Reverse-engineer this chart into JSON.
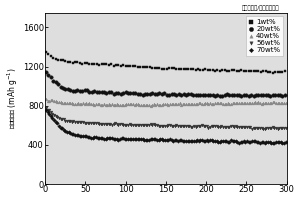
{
  "ylabel": "放电比容量 (mAh g⁻¹)",
  "xlim": [
    0,
    300
  ],
  "ylim": [
    0,
    1750
  ],
  "yticks": [
    0,
    400,
    800,
    1200,
    1600
  ],
  "xticks": [
    0,
    50,
    100,
    150,
    200,
    250,
    300
  ],
  "bg_color": "#e8e8e8",
  "series": [
    {
      "label": "1wt%",
      "marker": "s",
      "color": "#111111",
      "y_data": [
        1350,
        1280,
        1260,
        1250,
        1240,
        1230,
        1225,
        1220,
        1215,
        1210,
        1205,
        1200,
        1195,
        1190,
        1185,
        1180,
        1175,
        1175,
        1170,
        1168,
        1165,
        1162,
        1160,
        1158,
        1155,
        1153,
        1150,
        1148,
        1145,
        1143
      ],
      "markersize": 2.0,
      "markevery": 3
    },
    {
      "label": "20wt%",
      "marker": "o",
      "color": "#111111",
      "y_data": [
        1140,
        1050,
        980,
        960,
        955,
        950,
        945,
        940,
        935,
        930,
        928,
        926,
        924,
        922,
        920,
        918,
        916,
        914,
        912,
        910,
        908,
        910,
        912,
        910,
        908,
        906,
        905,
        904,
        903,
        902
      ],
      "markersize": 2.5,
      "markevery": 3
    },
    {
      "label": "40wt%",
      "marker": "^",
      "color": "#888888",
      "y_data": [
        870,
        840,
        830,
        825,
        822,
        820,
        818,
        816,
        815,
        814,
        813,
        812,
        811,
        812,
        813,
        815,
        817,
        818,
        820,
        822,
        823,
        824,
        825,
        826,
        827,
        828,
        829,
        830,
        830,
        830
      ],
      "markersize": 2.0,
      "markevery": 2
    },
    {
      "label": "56wt%",
      "marker": "v",
      "color": "#333333",
      "y_data": [
        780,
        700,
        660,
        640,
        630,
        622,
        618,
        614,
        610,
        607,
        605,
        604,
        603,
        602,
        600,
        598,
        596,
        594,
        592,
        590,
        588,
        586,
        584,
        582,
        580,
        578,
        576,
        574,
        572,
        570
      ],
      "markersize": 2.0,
      "markevery": 2
    },
    {
      "label": "70wt%",
      "marker": "D",
      "color": "#111111",
      "y_data": [
        755,
        650,
        560,
        510,
        490,
        480,
        472,
        468,
        465,
        462,
        460,
        458,
        456,
        454,
        452,
        450,
        448,
        446,
        444,
        442,
        440,
        438,
        436,
        434,
        432,
        430,
        428,
        426,
        424,
        422
      ],
      "markersize": 1.8,
      "markevery": 2
    }
  ]
}
